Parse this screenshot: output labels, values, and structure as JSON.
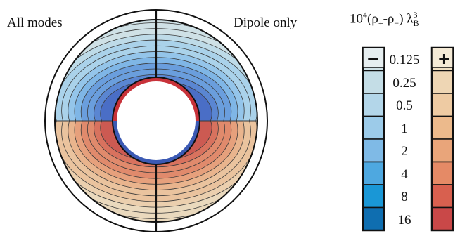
{
  "labels": {
    "left": "All modes",
    "right": "Dipole only"
  },
  "colorbar": {
    "title_base": "10",
    "title_exp": "4",
    "title_mid": "(ρ",
    "title_plus_sub": "+",
    "title_dash": "-ρ",
    "title_minus_sub": "−",
    "title_close": ") λ",
    "title_lambda_sup": "3",
    "title_lambda_sub": "B",
    "neg_sign": "−",
    "pos_sign": "+",
    "ticks": [
      "0.125",
      "0.25",
      "0.5",
      "1",
      "2",
      "4",
      "8",
      "16"
    ],
    "neg_colors": [
      "#cfe1e6",
      "#c4dde6",
      "#b3d6e9",
      "#9ccbe9",
      "#7fbae6",
      "#4ea8e0",
      "#1a97d6",
      "#0f6eb0"
    ],
    "pos_colors": [
      "#efe0c4",
      "#eed6b4",
      "#eecba3",
      "#ecba8c",
      "#e9a57a",
      "#e58a66",
      "#d8604f",
      "#c94848"
    ]
  },
  "diagram": {
    "outer_ring_color": "#ffffff",
    "outer_border_color": "#111111",
    "inner_top_color": "#c8323a",
    "inner_bottom_color": "#3c5ab4",
    "neg_fill_colors": [
      "#cfe1e6",
      "#bedbe8",
      "#aad2ea",
      "#94c5ea",
      "#7fb6e6",
      "#6a9edd",
      "#5a86d2",
      "#4a6ec6"
    ],
    "pos_fill_colors": [
      "#ead9bd",
      "#ebcfae",
      "#eac39e",
      "#e9b48d",
      "#e6a07c",
      "#e08a6c",
      "#d8725e",
      "#cc5a52"
    ]
  }
}
